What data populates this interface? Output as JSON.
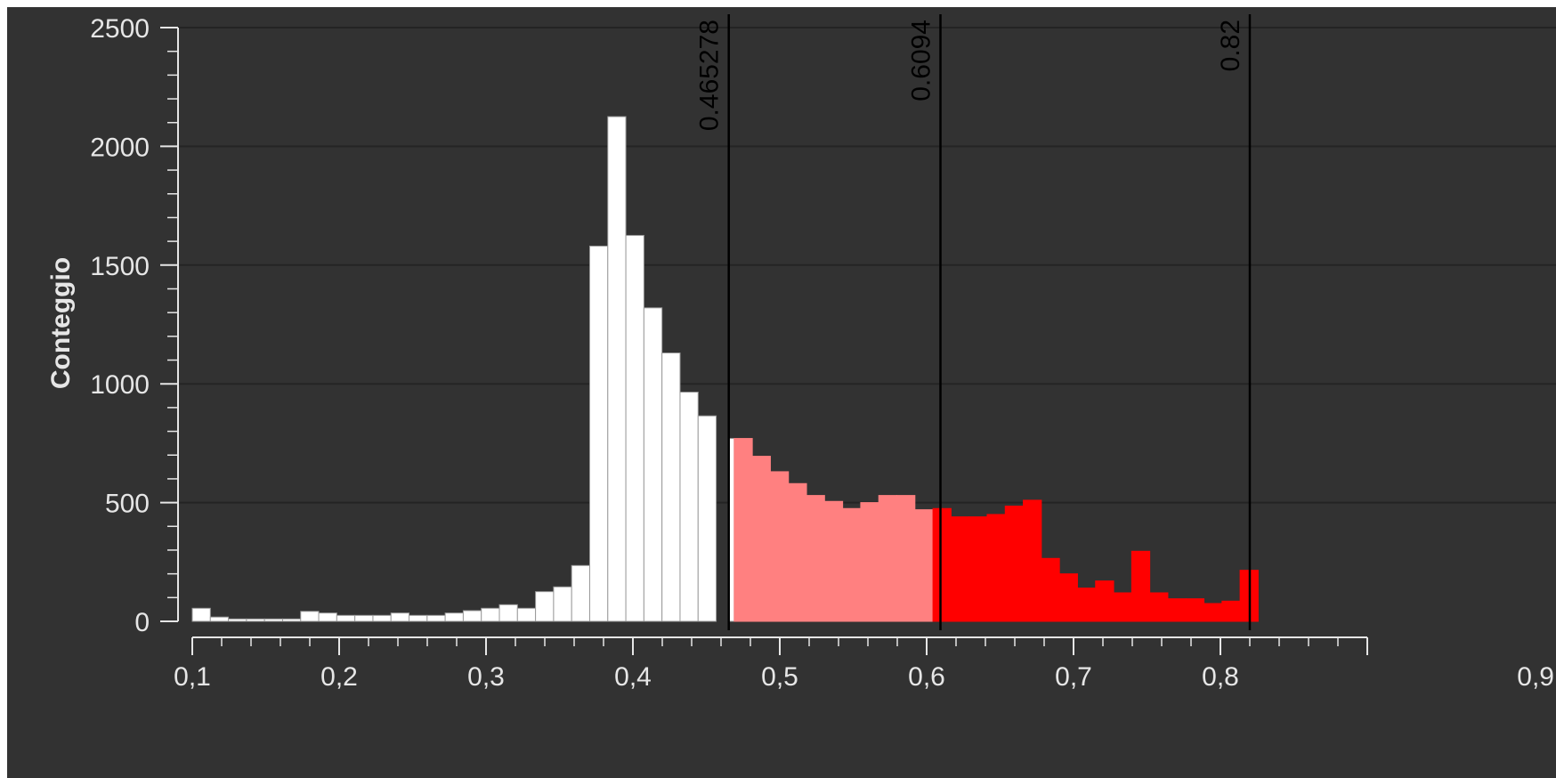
{
  "chart_data": {
    "type": "bar",
    "title": "",
    "xlabel": "",
    "ylabel": "Conteggio",
    "xlim": [
      0.1,
      0.9
    ],
    "ylim": [
      0,
      2500
    ],
    "x_ticks": [
      "0,1",
      "0,2",
      "0,3",
      "0,4",
      "0,5",
      "0,6",
      "0,7",
      "0,8",
      "0,9"
    ],
    "y_ticks": [
      "0",
      "500",
      "1000",
      "1500",
      "2000",
      "2500"
    ],
    "y_tick_values": [
      0,
      500,
      1000,
      1500,
      2000,
      2500
    ],
    "y_grid": true,
    "bin_start": 0.1,
    "bin_width": 0.0123,
    "values": [
      55,
      18,
      10,
      10,
      10,
      10,
      42,
      35,
      25,
      25,
      25,
      35,
      25,
      25,
      35,
      45,
      55,
      70,
      55,
      125,
      145,
      235,
      1580,
      2125,
      1625,
      1320,
      1130,
      965,
      865,
      770,
      770,
      695,
      630,
      580,
      530,
      505,
      475,
      500,
      530,
      530,
      470,
      475,
      440,
      440,
      450,
      485,
      510,
      265,
      200,
      140,
      170,
      120,
      295,
      120,
      95,
      95,
      75,
      85,
      215
    ],
    "thresholds": [
      {
        "value": 0.465278,
        "label": "0.465278"
      },
      {
        "value": 0.6094,
        "label": "0.6094"
      },
      {
        "value": 0.82,
        "label": "0.82"
      }
    ],
    "region_colors": [
      "#ffffff",
      "#ff8080",
      "#ff0000"
    ],
    "grid_color": "#242424",
    "axis_color": "#e6e6e6",
    "threshold_color": "#000000"
  }
}
